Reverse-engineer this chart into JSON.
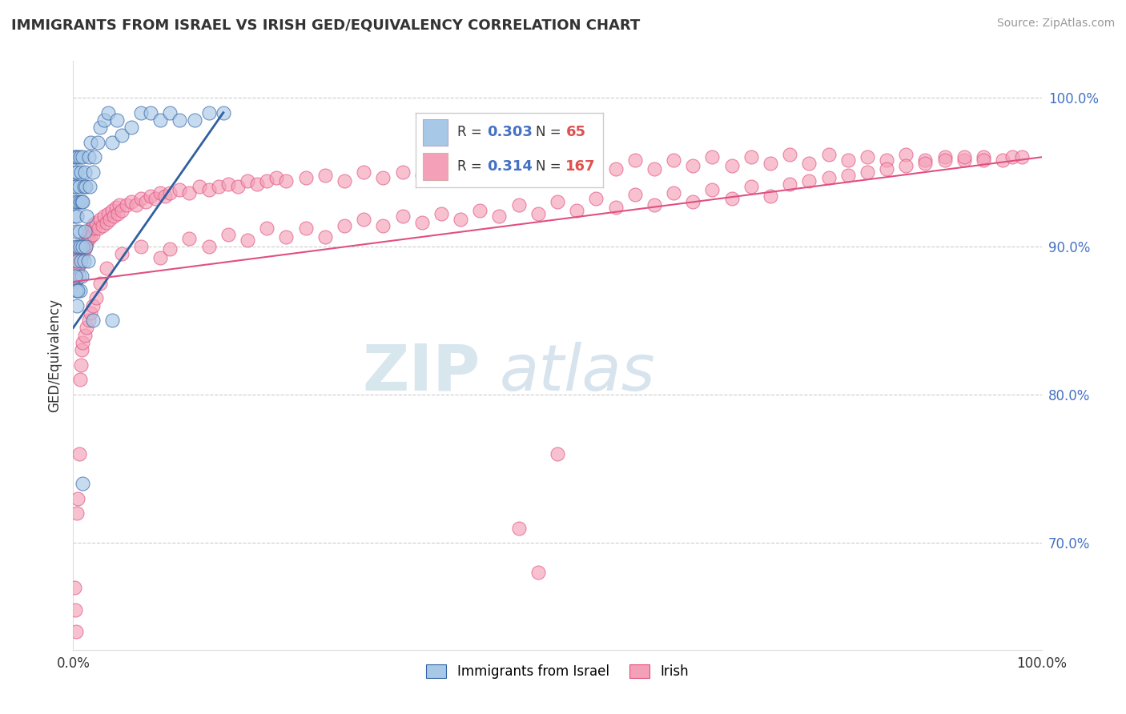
{
  "title": "IMMIGRANTS FROM ISRAEL VS IRISH GED/EQUIVALENCY CORRELATION CHART",
  "source_text": "Source: ZipAtlas.com",
  "ylabel": "GED/Equivalency",
  "xlim": [
    0.0,
    1.0
  ],
  "ylim": [
    0.628,
    1.025
  ],
  "y_ticks_right": [
    0.7,
    0.8,
    0.9,
    1.0
  ],
  "y_tick_labels_right": [
    "70.0%",
    "80.0%",
    "90.0%",
    "100.0%"
  ],
  "blue_color": "#a8c8e8",
  "pink_color": "#f4a0b8",
  "blue_line_color": "#3060a0",
  "pink_line_color": "#e05080",
  "watermark_zip": "ZIP",
  "watermark_atlas": "atlas",
  "blue_trend": [
    0.0,
    0.155,
    0.845,
    0.99
  ],
  "pink_trend": [
    0.0,
    1.0,
    0.876,
    0.96
  ],
  "blue_scatter_x": [
    0.001,
    0.001,
    0.001,
    0.002,
    0.002,
    0.002,
    0.003,
    0.003,
    0.003,
    0.004,
    0.004,
    0.004,
    0.005,
    0.005,
    0.005,
    0.006,
    0.006,
    0.006,
    0.007,
    0.007,
    0.007,
    0.007,
    0.008,
    0.008,
    0.009,
    0.009,
    0.01,
    0.01,
    0.01,
    0.011,
    0.011,
    0.012,
    0.012,
    0.013,
    0.013,
    0.014,
    0.015,
    0.016,
    0.017,
    0.018,
    0.02,
    0.022,
    0.025,
    0.028,
    0.032,
    0.036,
    0.04,
    0.045,
    0.05,
    0.06,
    0.07,
    0.08,
    0.09,
    0.1,
    0.11,
    0.125,
    0.14,
    0.155,
    0.01,
    0.02,
    0.04,
    0.004,
    0.003,
    0.002,
    0.005
  ],
  "blue_scatter_y": [
    0.92,
    0.94,
    0.96,
    0.9,
    0.93,
    0.95,
    0.91,
    0.94,
    0.96,
    0.89,
    0.92,
    0.95,
    0.9,
    0.93,
    0.96,
    0.88,
    0.91,
    0.94,
    0.87,
    0.9,
    0.93,
    0.96,
    0.89,
    0.95,
    0.88,
    0.93,
    0.9,
    0.93,
    0.96,
    0.89,
    0.94,
    0.91,
    0.95,
    0.9,
    0.94,
    0.92,
    0.89,
    0.96,
    0.94,
    0.97,
    0.95,
    0.96,
    0.97,
    0.98,
    0.985,
    0.99,
    0.97,
    0.985,
    0.975,
    0.98,
    0.99,
    0.99,
    0.985,
    0.99,
    0.985,
    0.985,
    0.99,
    0.99,
    0.74,
    0.85,
    0.85,
    0.86,
    0.87,
    0.88,
    0.87
  ],
  "pink_scatter_x": [
    0.002,
    0.003,
    0.004,
    0.004,
    0.005,
    0.005,
    0.006,
    0.006,
    0.007,
    0.008,
    0.008,
    0.009,
    0.01,
    0.011,
    0.012,
    0.013,
    0.014,
    0.015,
    0.016,
    0.017,
    0.018,
    0.019,
    0.02,
    0.021,
    0.022,
    0.024,
    0.026,
    0.028,
    0.03,
    0.032,
    0.034,
    0.036,
    0.038,
    0.04,
    0.042,
    0.044,
    0.046,
    0.048,
    0.05,
    0.055,
    0.06,
    0.065,
    0.07,
    0.075,
    0.08,
    0.085,
    0.09,
    0.095,
    0.1,
    0.11,
    0.12,
    0.13,
    0.14,
    0.15,
    0.16,
    0.17,
    0.18,
    0.19,
    0.2,
    0.21,
    0.22,
    0.24,
    0.26,
    0.28,
    0.3,
    0.32,
    0.34,
    0.36,
    0.38,
    0.4,
    0.42,
    0.44,
    0.46,
    0.48,
    0.5,
    0.52,
    0.54,
    0.56,
    0.58,
    0.6,
    0.62,
    0.64,
    0.66,
    0.68,
    0.7,
    0.72,
    0.74,
    0.76,
    0.78,
    0.8,
    0.82,
    0.84,
    0.86,
    0.88,
    0.9,
    0.92,
    0.94,
    0.96,
    0.97,
    0.98,
    0.05,
    0.07,
    0.09,
    0.1,
    0.12,
    0.14,
    0.16,
    0.18,
    0.2,
    0.22,
    0.24,
    0.26,
    0.28,
    0.3,
    0.32,
    0.34,
    0.36,
    0.38,
    0.4,
    0.42,
    0.44,
    0.46,
    0.48,
    0.5,
    0.52,
    0.54,
    0.56,
    0.58,
    0.6,
    0.62,
    0.64,
    0.66,
    0.68,
    0.7,
    0.72,
    0.74,
    0.76,
    0.78,
    0.8,
    0.82,
    0.84,
    0.86,
    0.88,
    0.9,
    0.92,
    0.94,
    0.46,
    0.48,
    0.5,
    0.003,
    0.002,
    0.001,
    0.004,
    0.005,
    0.006,
    0.007,
    0.008,
    0.009,
    0.01,
    0.012,
    0.014,
    0.016,
    0.018,
    0.02,
    0.024,
    0.028,
    0.034
  ],
  "pink_scatter_y": [
    0.876,
    0.882,
    0.878,
    0.892,
    0.885,
    0.895,
    0.888,
    0.9,
    0.895,
    0.892,
    0.898,
    0.9,
    0.895,
    0.9,
    0.898,
    0.905,
    0.902,
    0.908,
    0.905,
    0.91,
    0.907,
    0.912,
    0.908,
    0.915,
    0.912,
    0.916,
    0.912,
    0.918,
    0.914,
    0.92,
    0.916,
    0.922,
    0.918,
    0.924,
    0.92,
    0.926,
    0.922,
    0.928,
    0.924,
    0.928,
    0.93,
    0.928,
    0.932,
    0.93,
    0.934,
    0.932,
    0.936,
    0.934,
    0.936,
    0.938,
    0.936,
    0.94,
    0.938,
    0.94,
    0.942,
    0.94,
    0.944,
    0.942,
    0.944,
    0.946,
    0.944,
    0.946,
    0.948,
    0.944,
    0.95,
    0.946,
    0.95,
    0.948,
    0.952,
    0.948,
    0.952,
    0.948,
    0.954,
    0.95,
    0.954,
    0.95,
    0.956,
    0.952,
    0.958,
    0.952,
    0.958,
    0.954,
    0.96,
    0.954,
    0.96,
    0.956,
    0.962,
    0.956,
    0.962,
    0.958,
    0.96,
    0.958,
    0.962,
    0.958,
    0.96,
    0.958,
    0.96,
    0.958,
    0.96,
    0.96,
    0.895,
    0.9,
    0.892,
    0.898,
    0.905,
    0.9,
    0.908,
    0.904,
    0.912,
    0.906,
    0.912,
    0.906,
    0.914,
    0.918,
    0.914,
    0.92,
    0.916,
    0.922,
    0.918,
    0.924,
    0.92,
    0.928,
    0.922,
    0.93,
    0.924,
    0.932,
    0.926,
    0.935,
    0.928,
    0.936,
    0.93,
    0.938,
    0.932,
    0.94,
    0.934,
    0.942,
    0.944,
    0.946,
    0.948,
    0.95,
    0.952,
    0.954,
    0.956,
    0.958,
    0.96,
    0.958,
    0.71,
    0.68,
    0.76,
    0.64,
    0.655,
    0.67,
    0.72,
    0.73,
    0.76,
    0.81,
    0.82,
    0.83,
    0.835,
    0.84,
    0.845,
    0.85,
    0.855,
    0.86,
    0.865,
    0.875,
    0.885
  ]
}
